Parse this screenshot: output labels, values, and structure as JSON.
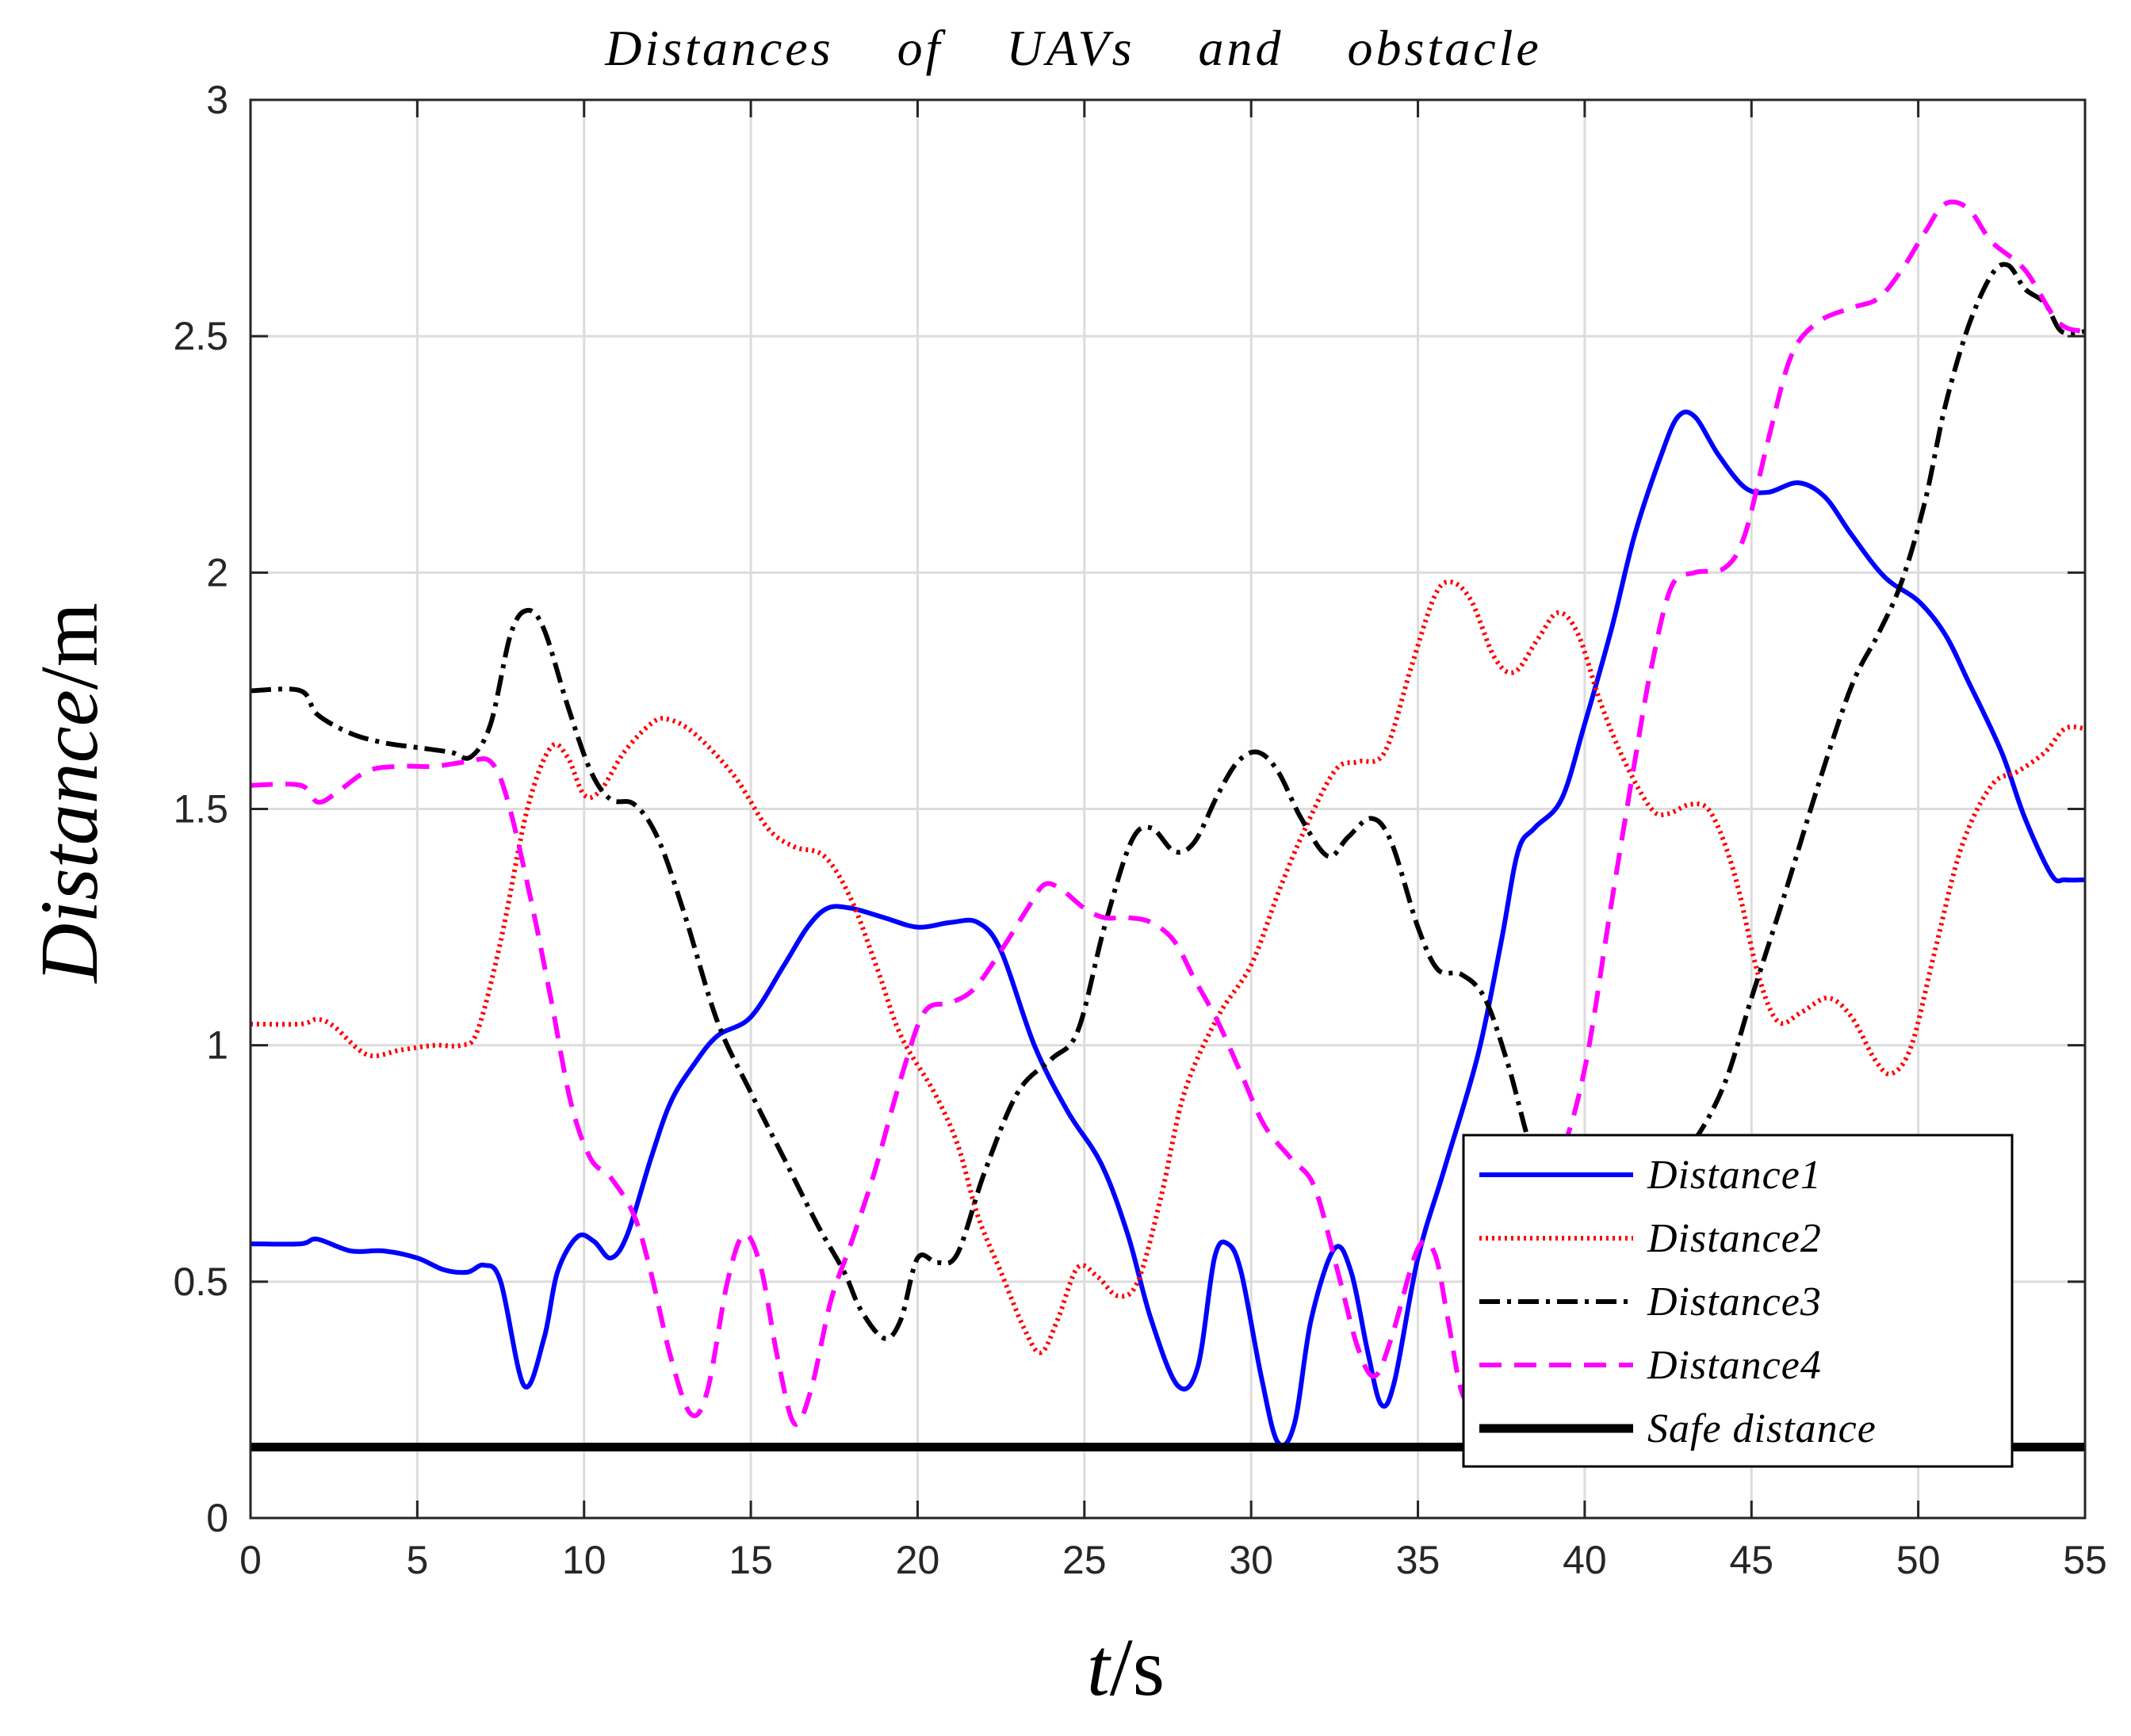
{
  "chart_data": {
    "type": "line",
    "title": "Distances    of    UAVs    and    obstacle",
    "xlabel": "t/s",
    "ylabel": "Distance/m",
    "xlim": [
      0,
      55
    ],
    "ylim": [
      0,
      3
    ],
    "xticks": [
      0,
      5,
      10,
      15,
      20,
      25,
      30,
      35,
      40,
      45,
      50,
      55
    ],
    "yticks": [
      0,
      0.5,
      1,
      1.5,
      2,
      2.5,
      3
    ],
    "grid": true,
    "legend_position": "lower-right",
    "series": [
      {
        "name": "Distance1",
        "color": "#0000ff",
        "style": "solid",
        "points": [
          [
            0,
            0.58
          ],
          [
            1.5,
            0.58
          ],
          [
            2,
            0.59
          ],
          [
            3,
            0.565
          ],
          [
            4,
            0.565
          ],
          [
            5,
            0.55
          ],
          [
            5.8,
            0.525
          ],
          [
            6.5,
            0.52
          ],
          [
            7,
            0.535
          ],
          [
            7.5,
            0.5
          ],
          [
            8.2,
            0.28
          ],
          [
            8.8,
            0.38
          ],
          [
            9.2,
            0.52
          ],
          [
            9.8,
            0.595
          ],
          [
            10.3,
            0.585
          ],
          [
            10.8,
            0.55
          ],
          [
            11.3,
            0.6
          ],
          [
            12,
            0.76
          ],
          [
            12.6,
            0.88
          ],
          [
            13.3,
            0.96
          ],
          [
            14,
            1.02
          ],
          [
            15,
            1.06
          ],
          [
            16,
            1.17
          ],
          [
            16.7,
            1.25
          ],
          [
            17.3,
            1.29
          ],
          [
            18,
            1.29
          ],
          [
            19,
            1.27
          ],
          [
            20,
            1.25
          ],
          [
            21,
            1.26
          ],
          [
            21.8,
            1.26
          ],
          [
            22.5,
            1.2
          ],
          [
            23.5,
            1.0
          ],
          [
            24.5,
            0.86
          ],
          [
            25.5,
            0.75
          ],
          [
            26.3,
            0.6
          ],
          [
            27,
            0.42
          ],
          [
            27.8,
            0.28
          ],
          [
            28.4,
            0.32
          ],
          [
            28.9,
            0.55
          ],
          [
            29.3,
            0.58
          ],
          [
            29.7,
            0.52
          ],
          [
            30.3,
            0.3
          ],
          [
            30.8,
            0.16
          ],
          [
            31.3,
            0.2
          ],
          [
            31.8,
            0.42
          ],
          [
            32.5,
            0.57
          ],
          [
            33,
            0.52
          ],
          [
            33.5,
            0.35
          ],
          [
            33.9,
            0.24
          ],
          [
            34.3,
            0.29
          ],
          [
            35,
            0.55
          ],
          [
            35.8,
            0.74
          ],
          [
            36.8,
            0.98
          ],
          [
            37.5,
            1.22
          ],
          [
            38,
            1.41
          ],
          [
            38.5,
            1.46
          ],
          [
            39.3,
            1.52
          ],
          [
            40,
            1.68
          ],
          [
            40.8,
            1.88
          ],
          [
            41.5,
            2.08
          ],
          [
            42.3,
            2.25
          ],
          [
            42.8,
            2.33
          ],
          [
            43.3,
            2.33
          ],
          [
            44,
            2.25
          ],
          [
            44.8,
            2.18
          ],
          [
            45.5,
            2.17
          ],
          [
            46.4,
            2.19
          ],
          [
            47.2,
            2.16
          ],
          [
            48,
            2.08
          ],
          [
            49,
            1.99
          ],
          [
            50,
            1.94
          ],
          [
            50.8,
            1.87
          ],
          [
            51.5,
            1.77
          ],
          [
            52.5,
            1.62
          ],
          [
            53.2,
            1.48
          ],
          [
            54,
            1.36
          ],
          [
            54.4,
            1.35
          ],
          [
            55,
            1.35
          ]
        ]
      },
      {
        "name": "Distance2",
        "color": "#ff0000",
        "style": "dotted",
        "points": [
          [
            0,
            1.045
          ],
          [
            1.5,
            1.045
          ],
          [
            2,
            1.055
          ],
          [
            2.5,
            1.04
          ],
          [
            3.5,
            0.98
          ],
          [
            4.5,
            0.99
          ],
          [
            5.5,
            1.0
          ],
          [
            6.3,
            1.0
          ],
          [
            6.8,
            1.03
          ],
          [
            7.5,
            1.22
          ],
          [
            8.3,
            1.5
          ],
          [
            9,
            1.63
          ],
          [
            9.5,
            1.61
          ],
          [
            10,
            1.53
          ],
          [
            10.5,
            1.54
          ],
          [
            11.2,
            1.62
          ],
          [
            12,
            1.68
          ],
          [
            12.5,
            1.69
          ],
          [
            13.3,
            1.66
          ],
          [
            14.5,
            1.57
          ],
          [
            15.5,
            1.46
          ],
          [
            16.3,
            1.42
          ],
          [
            17.2,
            1.4
          ],
          [
            18,
            1.31
          ],
          [
            18.8,
            1.16
          ],
          [
            19.5,
            1.02
          ],
          [
            20.5,
            0.9
          ],
          [
            21.2,
            0.79
          ],
          [
            21.8,
            0.64
          ],
          [
            22.5,
            0.52
          ],
          [
            23.2,
            0.4
          ],
          [
            23.7,
            0.35
          ],
          [
            24.2,
            0.42
          ],
          [
            24.8,
            0.53
          ],
          [
            25.4,
            0.51
          ],
          [
            26,
            0.47
          ],
          [
            26.6,
            0.5
          ],
          [
            27.3,
            0.68
          ],
          [
            28,
            0.9
          ],
          [
            29,
            1.06
          ],
          [
            30,
            1.17
          ],
          [
            30.8,
            1.32
          ],
          [
            31.5,
            1.44
          ],
          [
            32.5,
            1.58
          ],
          [
            33.2,
            1.6
          ],
          [
            34,
            1.62
          ],
          [
            34.8,
            1.8
          ],
          [
            35.5,
            1.95
          ],
          [
            36,
            1.98
          ],
          [
            36.6,
            1.94
          ],
          [
            37.3,
            1.82
          ],
          [
            37.9,
            1.79
          ],
          [
            38.6,
            1.86
          ],
          [
            39.2,
            1.915
          ],
          [
            39.8,
            1.87
          ],
          [
            40.5,
            1.72
          ],
          [
            41.2,
            1.6
          ],
          [
            42,
            1.5
          ],
          [
            42.5,
            1.49
          ],
          [
            43.2,
            1.51
          ],
          [
            43.8,
            1.49
          ],
          [
            44.5,
            1.36
          ],
          [
            45.2,
            1.15
          ],
          [
            45.8,
            1.05
          ],
          [
            46.5,
            1.07
          ],
          [
            47.3,
            1.1
          ],
          [
            48,
            1.06
          ],
          [
            48.7,
            0.97
          ],
          [
            49.2,
            0.94
          ],
          [
            49.8,
            1.0
          ],
          [
            50.5,
            1.2
          ],
          [
            51.3,
            1.42
          ],
          [
            52.2,
            1.55
          ],
          [
            53,
            1.58
          ],
          [
            53.8,
            1.62
          ],
          [
            54.4,
            1.67
          ],
          [
            55,
            1.67
          ]
        ]
      },
      {
        "name": "Distance3",
        "color": "#000000",
        "style": "dashdot",
        "points": [
          [
            0,
            1.75
          ],
          [
            1.5,
            1.75
          ],
          [
            2,
            1.7
          ],
          [
            3,
            1.66
          ],
          [
            4,
            1.64
          ],
          [
            5,
            1.63
          ],
          [
            6,
            1.62
          ],
          [
            6.6,
            1.61
          ],
          [
            7.2,
            1.68
          ],
          [
            7.8,
            1.87
          ],
          [
            8.3,
            1.92
          ],
          [
            8.8,
            1.88
          ],
          [
            9.5,
            1.72
          ],
          [
            10.2,
            1.58
          ],
          [
            10.8,
            1.52
          ],
          [
            11.5,
            1.51
          ],
          [
            12.2,
            1.44
          ],
          [
            13,
            1.28
          ],
          [
            14,
            1.05
          ],
          [
            15,
            0.9
          ],
          [
            16,
            0.76
          ],
          [
            17,
            0.62
          ],
          [
            17.8,
            0.52
          ],
          [
            18.3,
            0.44
          ],
          [
            19,
            0.38
          ],
          [
            19.5,
            0.42
          ],
          [
            20,
            0.55
          ],
          [
            20.6,
            0.54
          ],
          [
            21.2,
            0.56
          ],
          [
            22,
            0.73
          ],
          [
            23,
            0.9
          ],
          [
            24,
            0.97
          ],
          [
            24.8,
            1.03
          ],
          [
            25.6,
            1.25
          ],
          [
            26.4,
            1.43
          ],
          [
            27,
            1.46
          ],
          [
            27.7,
            1.41
          ],
          [
            28.3,
            1.43
          ],
          [
            29,
            1.53
          ],
          [
            29.6,
            1.6
          ],
          [
            30.2,
            1.62
          ],
          [
            30.8,
            1.58
          ],
          [
            31.5,
            1.48
          ],
          [
            32.3,
            1.4
          ],
          [
            32.9,
            1.44
          ],
          [
            33.6,
            1.48
          ],
          [
            34.2,
            1.43
          ],
          [
            35,
            1.25
          ],
          [
            35.6,
            1.16
          ],
          [
            36.3,
            1.15
          ],
          [
            37,
            1.1
          ],
          [
            37.7,
            0.96
          ],
          [
            38.4,
            0.78
          ],
          [
            39,
            0.7
          ],
          [
            39.8,
            0.64
          ],
          [
            40.5,
            0.62
          ],
          [
            41.2,
            0.67
          ],
          [
            41.8,
            0.71
          ],
          [
            42.5,
            0.75
          ],
          [
            43.3,
            0.8
          ],
          [
            44.2,
            0.92
          ],
          [
            45,
            1.1
          ],
          [
            46,
            1.32
          ],
          [
            47,
            1.55
          ],
          [
            48,
            1.76
          ],
          [
            48.8,
            1.87
          ],
          [
            49.5,
            1.98
          ],
          [
            50.2,
            2.15
          ],
          [
            50.8,
            2.35
          ],
          [
            51.5,
            2.52
          ],
          [
            52.2,
            2.63
          ],
          [
            52.7,
            2.65
          ],
          [
            53.2,
            2.6
          ],
          [
            53.8,
            2.57
          ],
          [
            54.3,
            2.51
          ],
          [
            55,
            2.51
          ]
        ]
      },
      {
        "name": "Distance4",
        "color": "#ff00ff",
        "style": "dashed",
        "points": [
          [
            0,
            1.55
          ],
          [
            1.5,
            1.55
          ],
          [
            2,
            1.515
          ],
          [
            2.5,
            1.53
          ],
          [
            3.5,
            1.58
          ],
          [
            4.5,
            1.59
          ],
          [
            5.5,
            1.59
          ],
          [
            6.5,
            1.6
          ],
          [
            7.2,
            1.6
          ],
          [
            7.7,
            1.52
          ],
          [
            8.4,
            1.31
          ],
          [
            9,
            1.1
          ],
          [
            9.6,
            0.88
          ],
          [
            10.2,
            0.76
          ],
          [
            10.8,
            0.72
          ],
          [
            11.5,
            0.64
          ],
          [
            12,
            0.52
          ],
          [
            12.6,
            0.34
          ],
          [
            13.2,
            0.22
          ],
          [
            13.7,
            0.27
          ],
          [
            14.3,
            0.5
          ],
          [
            14.8,
            0.6
          ],
          [
            15.3,
            0.53
          ],
          [
            15.8,
            0.34
          ],
          [
            16.3,
            0.2
          ],
          [
            16.8,
            0.27
          ],
          [
            17.4,
            0.46
          ],
          [
            18,
            0.58
          ],
          [
            18.7,
            0.73
          ],
          [
            19.5,
            0.93
          ],
          [
            20.2,
            1.07
          ],
          [
            21,
            1.09
          ],
          [
            21.7,
            1.12
          ],
          [
            22.5,
            1.2
          ],
          [
            23.3,
            1.29
          ],
          [
            23.8,
            1.34
          ],
          [
            24.3,
            1.33
          ],
          [
            25,
            1.29
          ],
          [
            25.6,
            1.27
          ],
          [
            26.3,
            1.27
          ],
          [
            27,
            1.26
          ],
          [
            27.7,
            1.22
          ],
          [
            28.3,
            1.14
          ],
          [
            29,
            1.05
          ],
          [
            29.7,
            0.94
          ],
          [
            30.4,
            0.83
          ],
          [
            31.2,
            0.76
          ],
          [
            31.9,
            0.7
          ],
          [
            32.6,
            0.52
          ],
          [
            33.2,
            0.36
          ],
          [
            33.7,
            0.3
          ],
          [
            34.2,
            0.38
          ],
          [
            35,
            0.57
          ],
          [
            35.5,
            0.56
          ],
          [
            35.9,
            0.42
          ],
          [
            36.3,
            0.27
          ],
          [
            36.7,
            0.24
          ],
          [
            37.2,
            0.3
          ],
          [
            37.8,
            0.52
          ],
          [
            38.3,
            0.72
          ],
          [
            39.2,
            0.76
          ],
          [
            40,
            0.95
          ],
          [
            40.8,
            1.3
          ],
          [
            41.5,
            1.6
          ],
          [
            42,
            1.8
          ],
          [
            42.6,
            1.97
          ],
          [
            43.3,
            2.0
          ],
          [
            44.2,
            2.01
          ],
          [
            44.8,
            2.08
          ],
          [
            45.5,
            2.28
          ],
          [
            46.2,
            2.46
          ],
          [
            47,
            2.53
          ],
          [
            48,
            2.56
          ],
          [
            48.8,
            2.58
          ],
          [
            49.5,
            2.64
          ],
          [
            50.2,
            2.72
          ],
          [
            50.8,
            2.78
          ],
          [
            51.5,
            2.77
          ],
          [
            52.2,
            2.7
          ],
          [
            53.2,
            2.64
          ],
          [
            54.2,
            2.53
          ],
          [
            55,
            2.51
          ]
        ]
      },
      {
        "name": "Safe    distance",
        "color": "#000000",
        "style": "thick-solid",
        "points": [
          [
            0,
            0.15
          ],
          [
            55,
            0.15
          ]
        ]
      }
    ]
  }
}
